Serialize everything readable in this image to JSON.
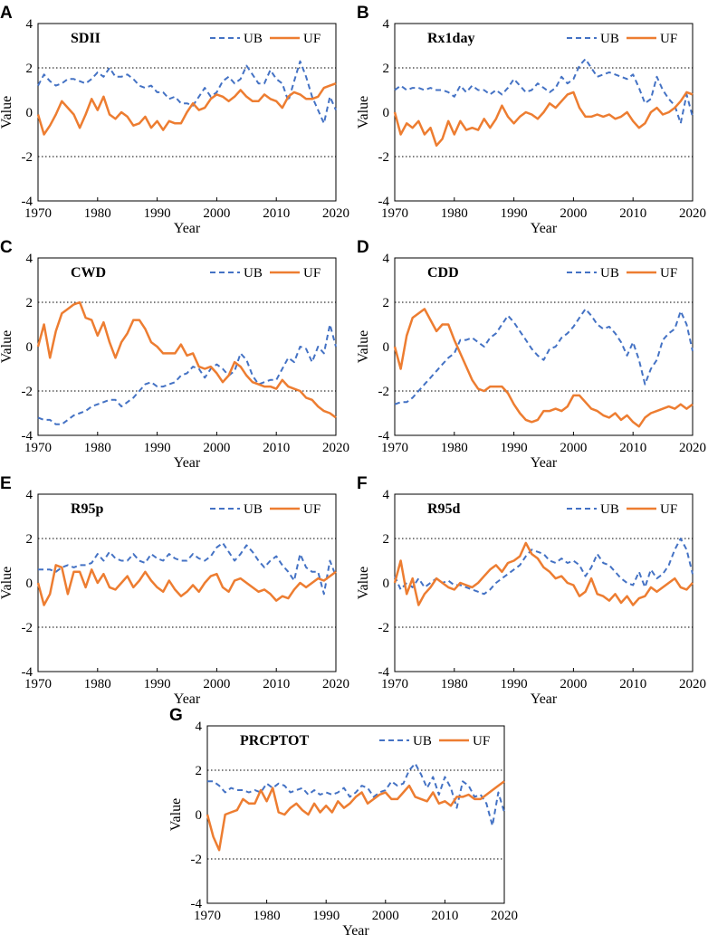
{
  "colors": {
    "ub": "#4472C4",
    "uf": "#ED7D31",
    "frame": "#000000",
    "grid": "#000000"
  },
  "chart_data": [
    {
      "panel": "A",
      "type": "line",
      "title": "SDII",
      "xlabel": "Year",
      "ylabel": "Value",
      "xlim": [
        1970,
        2020
      ],
      "ylim": [
        -4,
        4
      ],
      "xticks": [
        "1970",
        "1980",
        "1990",
        "2000",
        "2010",
        "2020"
      ],
      "yticks": [
        "4",
        "2",
        "0",
        "-2",
        "-4"
      ],
      "gridlines": [
        2,
        -2
      ],
      "legend": [
        "UB",
        "UF"
      ],
      "x_start": 1970,
      "series": [
        {
          "name": "UB",
          "style": "dashed",
          "values": [
            1.2,
            1.7,
            1.4,
            1.2,
            1.3,
            1.5,
            1.5,
            1.4,
            1.3,
            1.5,
            1.8,
            1.6,
            2.0,
            1.6,
            1.6,
            1.7,
            1.5,
            1.2,
            1.1,
            1.2,
            0.9,
            0.9,
            0.6,
            0.7,
            0.4,
            0.4,
            0.3,
            0.7,
            1.1,
            0.7,
            0.9,
            1.4,
            1.6,
            1.3,
            1.5,
            2.1,
            1.7,
            1.3,
            1.3,
            1.9,
            1.5,
            1.3,
            0.5,
            1.4,
            2.3,
            1.6,
            0.7,
            0.1,
            -0.5,
            0.7,
            0.1
          ]
        },
        {
          "name": "UF",
          "style": "solid",
          "values": [
            -0.1,
            -1.0,
            -0.6,
            -0.1,
            0.5,
            0.2,
            -0.1,
            -0.7,
            -0.1,
            0.6,
            0.1,
            0.7,
            -0.1,
            -0.3,
            0.0,
            -0.2,
            -0.6,
            -0.5,
            -0.2,
            -0.7,
            -0.4,
            -0.8,
            -0.4,
            -0.5,
            -0.5,
            0.0,
            0.4,
            0.1,
            0.2,
            0.6,
            0.8,
            0.7,
            0.5,
            0.7,
            1.0,
            0.7,
            0.5,
            0.5,
            0.8,
            0.6,
            0.5,
            0.2,
            0.7,
            0.9,
            0.8,
            0.6,
            0.6,
            0.7,
            1.1,
            1.2,
            1.3
          ]
        }
      ]
    },
    {
      "panel": "B",
      "type": "line",
      "title": "Rx1day",
      "xlabel": "Year",
      "ylabel": "Value",
      "xlim": [
        1970,
        2020
      ],
      "ylim": [
        -4,
        4
      ],
      "xticks": [
        "1970",
        "1980",
        "1990",
        "2000",
        "2010",
        "2020"
      ],
      "yticks": [
        "4",
        "2",
        "0",
        "-2",
        "-4"
      ],
      "gridlines": [
        2,
        -2
      ],
      "legend": [
        "UB",
        "UF"
      ],
      "x_start": 1970,
      "series": [
        {
          "name": "UB",
          "style": "dashed",
          "values": [
            1.0,
            1.2,
            1.0,
            1.1,
            1.1,
            1.0,
            1.1,
            1.0,
            1.0,
            0.9,
            0.7,
            1.2,
            0.9,
            1.2,
            1.0,
            1.0,
            0.8,
            1.0,
            0.8,
            1.1,
            1.5,
            1.2,
            0.9,
            1.0,
            1.3,
            1.1,
            0.9,
            1.1,
            1.6,
            1.3,
            1.5,
            2.1,
            2.4,
            2.0,
            1.6,
            1.7,
            1.8,
            1.7,
            1.6,
            1.5,
            1.7,
            1.1,
            0.4,
            0.6,
            1.6,
            1.0,
            0.6,
            0.3,
            -0.5,
            0.8,
            -0.2
          ]
        },
        {
          "name": "UF",
          "style": "solid",
          "values": [
            0.0,
            -1.0,
            -0.5,
            -0.7,
            -0.4,
            -1.0,
            -0.7,
            -1.5,
            -1.2,
            -0.4,
            -1.0,
            -0.4,
            -0.8,
            -0.7,
            -0.8,
            -0.3,
            -0.7,
            -0.3,
            0.3,
            -0.2,
            -0.5,
            -0.2,
            0.0,
            -0.1,
            -0.3,
            0.0,
            0.4,
            0.2,
            0.5,
            0.8,
            0.9,
            0.2,
            -0.2,
            -0.2,
            -0.1,
            -0.2,
            -0.1,
            -0.3,
            -0.2,
            0.0,
            -0.4,
            -0.7,
            -0.5,
            0.0,
            0.2,
            -0.1,
            0.0,
            0.2,
            0.5,
            0.9,
            0.8
          ]
        }
      ]
    },
    {
      "panel": "C",
      "type": "line",
      "title": "CWD",
      "xlabel": "Year",
      "ylabel": "Value",
      "xlim": [
        1970,
        2020
      ],
      "ylim": [
        -4,
        4
      ],
      "xticks": [
        "1970",
        "1980",
        "1990",
        "2000",
        "2010",
        "2020"
      ],
      "yticks": [
        "4",
        "2",
        "0",
        "-2",
        "-4"
      ],
      "gridlines": [
        2,
        -2
      ],
      "legend": [
        "UB",
        "UF"
      ],
      "x_start": 1970,
      "series": [
        {
          "name": "UB",
          "style": "dashed",
          "values": [
            -3.2,
            -3.3,
            -3.3,
            -3.5,
            -3.5,
            -3.3,
            -3.1,
            -3.0,
            -2.9,
            -2.7,
            -2.6,
            -2.5,
            -2.4,
            -2.4,
            -2.7,
            -2.5,
            -2.3,
            -2.0,
            -1.7,
            -1.6,
            -1.8,
            -1.8,
            -1.7,
            -1.6,
            -1.3,
            -1.2,
            -0.9,
            -1.0,
            -1.4,
            -1.0,
            -0.8,
            -1.0,
            -1.3,
            -1.1,
            -0.3,
            -0.6,
            -1.3,
            -1.7,
            -1.6,
            -1.5,
            -1.5,
            -1.0,
            -0.5,
            -0.7,
            0.0,
            -0.1,
            -0.7,
            0.0,
            -0.3,
            1.0,
            0.0
          ]
        },
        {
          "name": "UF",
          "style": "solid",
          "values": [
            0.0,
            1.0,
            -0.5,
            0.7,
            1.5,
            1.7,
            1.9,
            2.0,
            1.3,
            1.2,
            0.5,
            1.1,
            0.2,
            -0.5,
            0.2,
            0.6,
            1.2,
            1.2,
            0.8,
            0.2,
            0.0,
            -0.3,
            -0.3,
            -0.3,
            0.1,
            -0.4,
            -0.3,
            -0.9,
            -1.0,
            -0.9,
            -1.2,
            -1.6,
            -1.3,
            -0.7,
            -0.9,
            -1.3,
            -1.6,
            -1.7,
            -1.8,
            -1.8,
            -1.9,
            -1.5,
            -1.8,
            -1.9,
            -2.0,
            -2.3,
            -2.4,
            -2.7,
            -2.9,
            -3.0,
            -3.2
          ]
        }
      ]
    },
    {
      "panel": "D",
      "type": "line",
      "title": "CDD",
      "xlabel": "Year",
      "ylabel": "Value",
      "xlim": [
        1970,
        2020
      ],
      "ylim": [
        -4,
        4
      ],
      "xticks": [
        "1970",
        "1980",
        "1990",
        "2000",
        "2010",
        "2020"
      ],
      "yticks": [
        "4",
        "2",
        "0",
        "-2",
        "-4"
      ],
      "gridlines": [
        2,
        -2
      ],
      "legend": [
        "UB",
        "UF"
      ],
      "x_start": 1970,
      "series": [
        {
          "name": "UB",
          "style": "dashed",
          "values": [
            -2.6,
            -2.5,
            -2.5,
            -2.3,
            -2.0,
            -1.7,
            -1.4,
            -1.1,
            -0.8,
            -0.5,
            -0.3,
            0.3,
            0.3,
            0.4,
            0.2,
            0.0,
            0.4,
            0.6,
            1.0,
            1.4,
            1.1,
            0.7,
            0.3,
            -0.1,
            -0.4,
            -0.6,
            -0.1,
            0.0,
            0.4,
            0.6,
            0.9,
            1.3,
            1.7,
            1.4,
            1.0,
            0.8,
            0.9,
            0.6,
            0.2,
            -0.4,
            0.2,
            -0.6,
            -1.7,
            -1.0,
            -0.6,
            0.3,
            0.6,
            0.8,
            1.6,
            1.0,
            -0.2
          ]
        },
        {
          "name": "UF",
          "style": "solid",
          "values": [
            0.0,
            -1.0,
            0.5,
            1.3,
            1.5,
            1.7,
            1.2,
            0.7,
            1.0,
            1.0,
            0.3,
            -0.3,
            -0.9,
            -1.5,
            -1.9,
            -2.0,
            -1.8,
            -1.8,
            -1.8,
            -2.1,
            -2.6,
            -3.0,
            -3.3,
            -3.4,
            -3.3,
            -2.9,
            -2.9,
            -2.8,
            -2.9,
            -2.7,
            -2.2,
            -2.2,
            -2.5,
            -2.8,
            -2.9,
            -3.1,
            -3.2,
            -3.0,
            -3.3,
            -3.1,
            -3.4,
            -3.6,
            -3.2,
            -3.0,
            -2.9,
            -2.8,
            -2.7,
            -2.8,
            -2.6,
            -2.8,
            -2.6
          ]
        }
      ]
    },
    {
      "panel": "E",
      "type": "line",
      "title": "R95p",
      "xlabel": "Year",
      "ylabel": "Value",
      "xlim": [
        1970,
        2020
      ],
      "ylim": [
        -4,
        4
      ],
      "xticks": [
        "1970",
        "1980",
        "1990",
        "2000",
        "2010",
        "2020"
      ],
      "yticks": [
        "4",
        "2",
        "0",
        "-2",
        "-4"
      ],
      "gridlines": [
        2,
        -2
      ],
      "legend": [
        "UB",
        "UF"
      ],
      "x_start": 1970,
      "series": [
        {
          "name": "UB",
          "style": "dashed",
          "values": [
            0.6,
            0.6,
            0.6,
            0.5,
            0.7,
            0.8,
            0.7,
            0.8,
            0.8,
            0.9,
            1.3,
            1.0,
            1.4,
            1.1,
            1.0,
            1.0,
            1.3,
            1.0,
            0.9,
            1.3,
            1.1,
            1.0,
            1.3,
            1.1,
            1.0,
            1.0,
            1.3,
            1.1,
            1.0,
            1.2,
            1.6,
            1.8,
            1.4,
            1.0,
            1.3,
            1.7,
            1.4,
            1.0,
            0.7,
            1.0,
            1.2,
            0.8,
            0.5,
            0.1,
            1.3,
            0.7,
            0.5,
            0.5,
            -0.5,
            1.0,
            0.3
          ]
        },
        {
          "name": "UF",
          "style": "solid",
          "values": [
            0.0,
            -1.0,
            -0.5,
            0.8,
            0.7,
            -0.5,
            0.5,
            0.5,
            -0.2,
            0.6,
            0.0,
            0.4,
            -0.2,
            -0.3,
            0.0,
            0.3,
            -0.2,
            0.1,
            0.5,
            0.1,
            -0.2,
            -0.4,
            0.1,
            -0.3,
            -0.6,
            -0.4,
            -0.1,
            -0.4,
            0.0,
            0.3,
            0.4,
            -0.2,
            -0.4,
            0.1,
            0.2,
            0.0,
            -0.2,
            -0.4,
            -0.3,
            -0.5,
            -0.8,
            -0.6,
            -0.7,
            -0.3,
            0.0,
            -0.2,
            0.0,
            0.2,
            0.1,
            0.3,
            0.5
          ]
        }
      ]
    },
    {
      "panel": "F",
      "type": "line",
      "title": "R95d",
      "xlabel": "Year",
      "ylabel": "Value",
      "xlim": [
        1970,
        2020
      ],
      "ylim": [
        -4,
        4
      ],
      "xticks": [
        "1970",
        "1980",
        "1990",
        "2000",
        "2010",
        "2020"
      ],
      "yticks": [
        "4",
        "2",
        "0",
        "-2",
        "-4"
      ],
      "gridlines": [
        2,
        -2
      ],
      "legend": [
        "UB",
        "UF"
      ],
      "x_start": 1970,
      "series": [
        {
          "name": "UB",
          "style": "dashed",
          "values": [
            0.3,
            -0.3,
            0.0,
            -0.2,
            0.2,
            -0.2,
            0.0,
            0.2,
            0.0,
            0.1,
            -0.1,
            -0.1,
            -0.2,
            -0.3,
            -0.4,
            -0.5,
            -0.3,
            0.0,
            0.2,
            0.4,
            0.6,
            0.8,
            1.2,
            1.5,
            1.4,
            1.3,
            1.0,
            0.9,
            1.1,
            0.9,
            1.0,
            0.8,
            0.3,
            0.7,
            1.3,
            0.9,
            0.8,
            0.5,
            0.2,
            0.0,
            -0.1,
            0.5,
            -0.2,
            0.6,
            0.2,
            0.4,
            0.8,
            1.5,
            2.0,
            1.5,
            0.4
          ]
        },
        {
          "name": "UF",
          "style": "solid",
          "values": [
            0.0,
            1.0,
            -0.5,
            0.2,
            -1.0,
            -0.5,
            -0.2,
            0.2,
            0.0,
            -0.2,
            -0.3,
            0.0,
            -0.1,
            -0.2,
            0.0,
            0.3,
            0.6,
            0.8,
            0.5,
            0.9,
            1.0,
            1.2,
            1.8,
            1.3,
            1.1,
            0.7,
            0.5,
            0.2,
            0.3,
            0.0,
            -0.1,
            -0.6,
            -0.4,
            0.2,
            -0.5,
            -0.6,
            -0.8,
            -0.5,
            -0.9,
            -0.6,
            -1.0,
            -0.7,
            -0.6,
            -0.2,
            -0.4,
            -0.2,
            0.0,
            0.2,
            -0.2,
            -0.3,
            0.0
          ]
        }
      ]
    },
    {
      "panel": "G",
      "type": "line",
      "title": "PRCPTOT",
      "xlabel": "Year",
      "ylabel": "Value",
      "xlim": [
        1970,
        2020
      ],
      "ylim": [
        -4,
        4
      ],
      "xticks": [
        "1970",
        "1980",
        "1990",
        "2000",
        "2010",
        "2020"
      ],
      "yticks": [
        "4",
        "2",
        "0",
        "-2",
        "-4"
      ],
      "gridlines": [
        2,
        -2
      ],
      "legend": [
        "UB",
        "UF"
      ],
      "x_start": 1970,
      "series": [
        {
          "name": "UB",
          "style": "dashed",
          "values": [
            1.5,
            1.5,
            1.3,
            1.0,
            1.2,
            1.1,
            1.1,
            1.0,
            1.1,
            1.0,
            1.4,
            1.2,
            1.4,
            1.3,
            1.0,
            1.1,
            1.2,
            0.9,
            1.1,
            0.9,
            1.0,
            0.9,
            1.0,
            1.2,
            0.8,
            1.0,
            1.3,
            1.2,
            0.8,
            1.0,
            1.1,
            1.5,
            1.3,
            1.4,
            2.0,
            2.3,
            1.8,
            1.2,
            1.7,
            0.9,
            1.7,
            1.2,
            0.3,
            1.5,
            1.3,
            0.8,
            0.9,
            0.5,
            -0.5,
            1.0,
            0.1
          ]
        },
        {
          "name": "UF",
          "style": "solid",
          "values": [
            0.0,
            -1.0,
            -1.6,
            0.0,
            0.1,
            0.2,
            0.7,
            0.5,
            0.5,
            1.1,
            0.6,
            1.2,
            0.1,
            0.0,
            0.3,
            0.5,
            0.2,
            0.0,
            0.5,
            0.1,
            0.4,
            0.1,
            0.6,
            0.3,
            0.5,
            0.8,
            1.0,
            0.5,
            0.7,
            0.9,
            1.0,
            0.7,
            0.7,
            1.0,
            1.3,
            0.8,
            0.7,
            0.6,
            1.0,
            0.5,
            0.6,
            0.4,
            0.8,
            0.8,
            0.9,
            0.7,
            0.7,
            0.9,
            1.1,
            1.3,
            1.5
          ]
        }
      ]
    }
  ]
}
